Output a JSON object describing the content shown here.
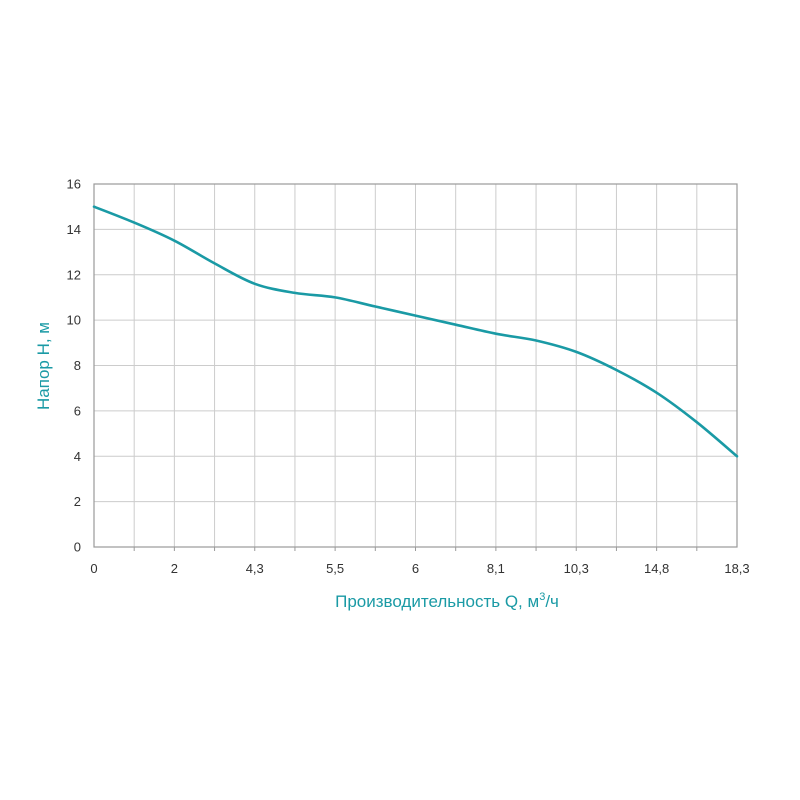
{
  "chart_data": {
    "type": "line",
    "title": "",
    "xlabel": "Производительность Q, м",
    "xlabel_sup": "3",
    "xlabel_suffix": "/ч",
    "ylabel": "Напор Н, м",
    "x_tick_labels": [
      "0",
      "2",
      "4,3",
      "5,5",
      "6",
      "8,1",
      "10,3",
      "14,8",
      "18,3"
    ],
    "y_ticks": [
      0,
      2,
      4,
      6,
      8,
      10,
      12,
      14,
      16
    ],
    "ylim": [
      0,
      16
    ],
    "grid": true,
    "series": [
      {
        "values_by_x_position": [
          [
            0,
            15.0
          ],
          [
            0.5,
            14.3
          ],
          [
            1,
            13.5
          ],
          [
            1.5,
            12.5
          ],
          [
            2,
            11.6
          ],
          [
            2.5,
            11.2
          ],
          [
            3,
            11.0
          ],
          [
            3.5,
            10.6
          ],
          [
            4,
            10.2
          ],
          [
            4.5,
            9.8
          ],
          [
            5,
            9.4
          ],
          [
            5.5,
            9.1
          ],
          [
            6,
            8.6
          ],
          [
            6.5,
            7.8
          ],
          [
            7,
            6.8
          ],
          [
            7.5,
            5.5
          ],
          [
            8,
            4.0
          ]
        ]
      }
    ],
    "colors": {
      "line": "#1a9aa5",
      "axis_title": "#1a9aa5",
      "grid": "#cccccc",
      "frame": "#9a9a9a",
      "tick_text": "#333333"
    }
  }
}
